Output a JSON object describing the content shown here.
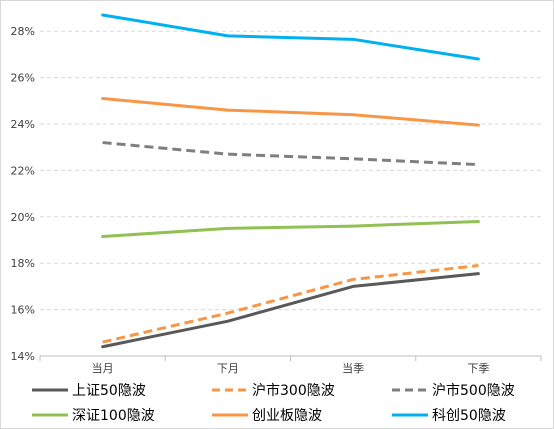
{
  "chart_data": {
    "type": "line",
    "categories": [
      "当月",
      "下月",
      "当季",
      "下季"
    ],
    "y_tick_labels": [
      "14%",
      "16%",
      "18%",
      "20%",
      "22%",
      "24%",
      "26%",
      "28%"
    ],
    "ylim": [
      14,
      29
    ],
    "grid": "horizontal dashed",
    "legend_position": "bottom",
    "series": [
      {
        "name": "上证50隐波",
        "values": [
          14.4,
          15.5,
          17.0,
          17.55
        ],
        "color": "#595959",
        "dash": "solid"
      },
      {
        "name": "沪市300隐波",
        "values": [
          14.6,
          15.85,
          17.3,
          17.9
        ],
        "color": "#f79646",
        "dash": "dashed"
      },
      {
        "name": "沪市500隐波",
        "values": [
          23.2,
          22.7,
          22.5,
          22.25
        ],
        "color": "#7f7f7f",
        "dash": "dashed"
      },
      {
        "name": "深证100隐波",
        "values": [
          19.15,
          19.5,
          19.6,
          19.8
        ],
        "color": "#92c153",
        "dash": "solid"
      },
      {
        "name": "创业板隐波",
        "values": [
          25.1,
          24.6,
          24.4,
          23.95
        ],
        "color": "#f79646",
        "dash": "solid"
      },
      {
        "name": "科创50隐波",
        "values": [
          28.7,
          27.8,
          27.65,
          26.8
        ],
        "color": "#00b0f0",
        "dash": "solid"
      }
    ]
  }
}
